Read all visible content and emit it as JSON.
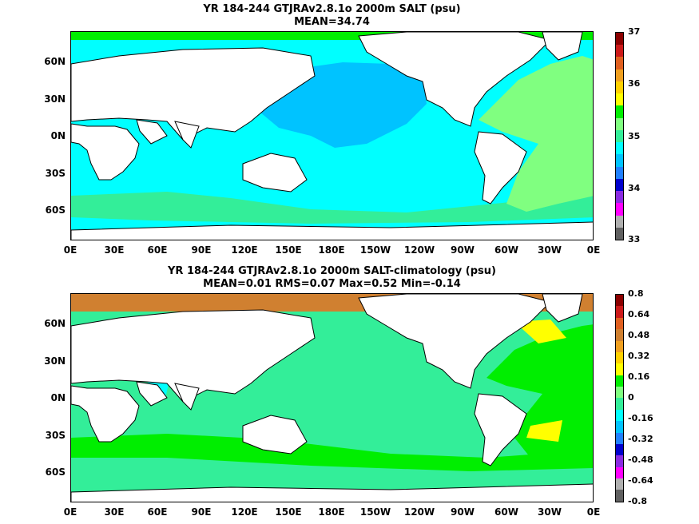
{
  "panels": [
    {
      "id": "salt",
      "title": "YR 184-244 GTJRAv2.8.1o 2000m SALT (psu)",
      "subtitle": "MEAN=34.74",
      "colors": {
        "ocean_background": "#00ffff",
        "north_pacific": "#00c3ff",
        "atlantic": "#80ff80",
        "southern_band": "#33ee99",
        "arctic": "#00ee00",
        "mediterranean": "#a52a2a"
      },
      "colorbar": {
        "labels": [
          "37",
          "36",
          "35",
          "34",
          "33"
        ],
        "colors": [
          "#8b0000",
          "#cc1a1a",
          "#e06020",
          "#f0a020",
          "#ffd000",
          "#ffff00",
          "#00ee00",
          "#80ff80",
          "#33ee99",
          "#00ffff",
          "#00c3ff",
          "#2080ff",
          "#0000cd",
          "#8a2be2",
          "#ff00ff",
          "#b0b0b0",
          "#606060"
        ]
      }
    },
    {
      "id": "diff",
      "title": "YR 184-244 GTJRAv2.8.1o 2000m SALT-climatology (psu)",
      "subtitle": "MEAN=0.01   RMS=0.07   Max=0.52   Min=-0.14",
      "colors": {
        "ocean_background": "#33ee99",
        "arctic": "#d08030",
        "atlantic": "#00ee00",
        "atlantic_high": "#ffff00",
        "southern_band": "#00ee00",
        "arabian_sea": "#00ffff"
      },
      "colorbar": {
        "labels": [
          "0.8",
          "0.64",
          "0.48",
          "0.32",
          "0.16",
          "0",
          "-0.16",
          "-0.32",
          "-0.48",
          "-0.64",
          "-0.8"
        ],
        "colors": [
          "#8b0000",
          "#cc1a1a",
          "#e06020",
          "#d08030",
          "#f0a020",
          "#ffd000",
          "#ffff00",
          "#00ee00",
          "#80ff80",
          "#33ee99",
          "#00ffff",
          "#00c3ff",
          "#2080ff",
          "#0000cd",
          "#8a2be2",
          "#ff00ff",
          "#b0b0b0",
          "#606060"
        ]
      }
    }
  ],
  "axes": {
    "lat_labels": [
      "60N",
      "30N",
      "0N",
      "30S",
      "60S"
    ],
    "lon_labels": [
      "0E",
      "30E",
      "60E",
      "90E",
      "120E",
      "150E",
      "180E",
      "150W",
      "120W",
      "90W",
      "60W",
      "30W",
      "0E"
    ]
  }
}
